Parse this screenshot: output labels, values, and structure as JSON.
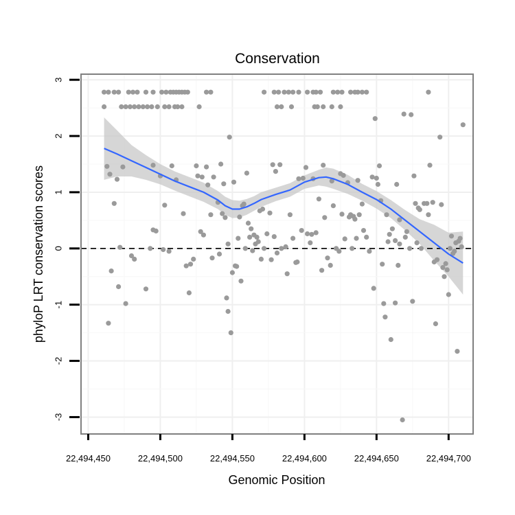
{
  "chart_data": {
    "type": "scatter",
    "title": "Conservation",
    "xlabel": "Genomic Position",
    "ylabel": "phyloP LRT conservation scores",
    "xlim": [
      22494445,
      22494717
    ],
    "ylim": [
      -3.3,
      3.1
    ],
    "x_ticks": [
      22494450,
      22494500,
      22494550,
      22494600,
      22494650,
      22494700
    ],
    "x_tick_labels": [
      "22,494,450",
      "22,494,500",
      "22,494,550",
      "22,494,600",
      "22,494,650",
      "22,494,700"
    ],
    "y_ticks": [
      -3,
      -2,
      -1,
      0,
      1,
      2,
      3
    ],
    "y_tick_labels": [
      "-3",
      "-2",
      "-1",
      "0",
      "1",
      "2",
      "3"
    ],
    "reference_line": {
      "y": 0,
      "style": "dashed",
      "color": "#000000"
    },
    "grid": true,
    "colors": {
      "points": "#9a9a9a",
      "smooth_line": "#3366ff",
      "confidence_band": "#c8c8c8",
      "panel_border": "#7f7f7f"
    },
    "points": [
      [
        22494461,
        2.78
      ],
      [
        22494464,
        2.78
      ],
      [
        22494468,
        2.78
      ],
      [
        22494471,
        2.78
      ],
      [
        22494478,
        2.78
      ],
      [
        22494481,
        2.78
      ],
      [
        22494484,
        2.78
      ],
      [
        22494490,
        2.78
      ],
      [
        22494495,
        2.78
      ],
      [
        22494501,
        2.78
      ],
      [
        22494504,
        2.78
      ],
      [
        22494507,
        2.78
      ],
      [
        22494509,
        2.78
      ],
      [
        22494511,
        2.78
      ],
      [
        22494513,
        2.78
      ],
      [
        22494515,
        2.78
      ],
      [
        22494517,
        2.78
      ],
      [
        22494519,
        2.78
      ],
      [
        22494532,
        2.78
      ],
      [
        22494535,
        2.78
      ],
      [
        22494572,
        2.78
      ],
      [
        22494579,
        2.78
      ],
      [
        22494582,
        2.78
      ],
      [
        22494586,
        2.78
      ],
      [
        22494589,
        2.78
      ],
      [
        22494592,
        2.78
      ],
      [
        22494596,
        2.78
      ],
      [
        22494602,
        2.78
      ],
      [
        22494606,
        2.78
      ],
      [
        22494608,
        2.78
      ],
      [
        22494611,
        2.78
      ],
      [
        22494620,
        2.78
      ],
      [
        22494623,
        2.78
      ],
      [
        22494626,
        2.78
      ],
      [
        22494632,
        2.78
      ],
      [
        22494635,
        2.78
      ],
      [
        22494637,
        2.78
      ],
      [
        22494640,
        2.78
      ],
      [
        22494643,
        2.78
      ],
      [
        22494686,
        2.78
      ],
      [
        22494461,
        2.52
      ],
      [
        22494473,
        2.52
      ],
      [
        22494476,
        2.52
      ],
      [
        22494479,
        2.52
      ],
      [
        22494482,
        2.52
      ],
      [
        22494485,
        2.52
      ],
      [
        22494488,
        2.52
      ],
      [
        22494491,
        2.52
      ],
      [
        22494494,
        2.52
      ],
      [
        22494498,
        2.52
      ],
      [
        22494503,
        2.52
      ],
      [
        22494506,
        2.52
      ],
      [
        22494510,
        2.52
      ],
      [
        22494512,
        2.52
      ],
      [
        22494515,
        2.52
      ],
      [
        22494527,
        2.52
      ],
      [
        22494581,
        2.52
      ],
      [
        22494584,
        2.52
      ],
      [
        22494591,
        2.52
      ],
      [
        22494607,
        2.52
      ],
      [
        22494609,
        2.52
      ],
      [
        22494613,
        2.52
      ],
      [
        22494619,
        2.52
      ],
      [
        22494625,
        2.52
      ],
      [
        22494463,
        1.46
      ],
      [
        22494465,
        1.32
      ],
      [
        22494468,
        0.8
      ],
      [
        22494470,
        1.23
      ],
      [
        22494472,
        0.02
      ],
      [
        22494474,
        1.45
      ],
      [
        22494476,
        -0.98
      ],
      [
        22494464,
        -1.33
      ],
      [
        22494466,
        -0.4
      ],
      [
        22494471,
        -0.68
      ],
      [
        22494480,
        -0.13
      ],
      [
        22494482,
        -0.19
      ],
      [
        22494490,
        -0.72
      ],
      [
        22494493,
        0.0
      ],
      [
        22494495,
        0.33
      ],
      [
        22494497,
        0.31
      ],
      [
        22494495,
        1.48
      ],
      [
        22494500,
        1.29
      ],
      [
        22494503,
        0.77
      ],
      [
        22494502,
        -0.02
      ],
      [
        22494506,
        -0.05
      ],
      [
        22494508,
        1.47
      ],
      [
        22494511,
        1.22
      ],
      [
        22494516,
        0.62
      ],
      [
        22494518,
        -0.31
      ],
      [
        22494520,
        -0.79
      ],
      [
        22494521,
        -0.28
      ],
      [
        22494523,
        -0.19
      ],
      [
        22494525,
        1.47
      ],
      [
        22494526,
        1.29
      ],
      [
        22494528,
        0.3
      ],
      [
        22494529,
        1.27
      ],
      [
        22494530,
        0.24
      ],
      [
        22494532,
        1.45
      ],
      [
        22494533,
        1.13
      ],
      [
        22494535,
        0.6
      ],
      [
        22494536,
        -0.17
      ],
      [
        22494537,
        1.27
      ],
      [
        22494540,
        0.82
      ],
      [
        22494541,
        -0.1
      ],
      [
        22494542,
        1.5
      ],
      [
        22494543,
        0.62
      ],
      [
        22494544,
        1.15
      ],
      [
        22494545,
        0.55
      ],
      [
        22494547,
        0.08
      ],
      [
        22494546,
        -0.88
      ],
      [
        22494547,
        -1.12
      ],
      [
        22494549,
        -1.5
      ],
      [
        22494550,
        -0.43
      ],
      [
        22494548,
        1.98
      ],
      [
        22494551,
        1.18
      ],
      [
        22494552,
        -0.31
      ],
      [
        22494553,
        -0.32
      ],
      [
        22494554,
        0.18
      ],
      [
        22494555,
        0.56
      ],
      [
        22494556,
        -0.58
      ],
      [
        22494557,
        0.76
      ],
      [
        22494558,
        0.79
      ],
      [
        22494559,
        0.0
      ],
      [
        22494560,
        1.34
      ],
      [
        22494561,
        0.45
      ],
      [
        22494562,
        0.2
      ],
      [
        22494563,
        0.35
      ],
      [
        22494564,
        -0.04
      ],
      [
        22494565,
        0.24
      ],
      [
        22494566,
        0.08
      ],
      [
        22494567,
        0.2
      ],
      [
        22494568,
        0.12
      ],
      [
        22494569,
        0.67
      ],
      [
        22494570,
        -0.19
      ],
      [
        22494571,
        0.7
      ],
      [
        22494572,
        0.0
      ],
      [
        22494574,
        0.26
      ],
      [
        22494576,
        0.63
      ],
      [
        22494577,
        -0.2
      ],
      [
        22494578,
        1.49
      ],
      [
        22494579,
        0.21
      ],
      [
        22494580,
        1.37
      ],
      [
        22494581,
        -0.08
      ],
      [
        22494583,
        1.49
      ],
      [
        22494584,
        0.0
      ],
      [
        22494587,
        0.03
      ],
      [
        22494588,
        -0.45
      ],
      [
        22494590,
        0.6
      ],
      [
        22494592,
        0.18
      ],
      [
        22494594,
        -0.25
      ],
      [
        22494595,
        -0.24
      ],
      [
        22494596,
        1.24
      ],
      [
        22494598,
        0.32
      ],
      [
        22494599,
        1.25
      ],
      [
        22494601,
        1.44
      ],
      [
        22494602,
        0.26
      ],
      [
        22494604,
        0.1
      ],
      [
        22494605,
        0.25
      ],
      [
        22494606,
        1.24
      ],
      [
        22494608,
        0.28
      ],
      [
        22494610,
        0.88
      ],
      [
        22494612,
        -0.39
      ],
      [
        22494613,
        1.48
      ],
      [
        22494614,
        0.55
      ],
      [
        22494616,
        -0.17
      ],
      [
        22494618,
        -0.3
      ],
      [
        22494619,
        1.2
      ],
      [
        22494620,
        0.76
      ],
      [
        22494622,
        0.0
      ],
      [
        22494624,
        -0.05
      ],
      [
        22494625,
        1.33
      ],
      [
        22494626,
        0.61
      ],
      [
        22494627,
        1.3
      ],
      [
        22494628,
        0.17
      ],
      [
        22494630,
        1.17
      ],
      [
        22494631,
        0.56
      ],
      [
        22494632,
        0.6
      ],
      [
        22494633,
        0.0
      ],
      [
        22494634,
        0.57
      ],
      [
        22494635,
        0.52
      ],
      [
        22494636,
        0.18
      ],
      [
        22494637,
        1.21
      ],
      [
        22494638,
        0.6
      ],
      [
        22494640,
        0.79
      ],
      [
        22494641,
        0.32
      ],
      [
        22494643,
        0.2
      ],
      [
        22494645,
        -0.05
      ],
      [
        22494647,
        1.27
      ],
      [
        22494648,
        -0.71
      ],
      [
        22494649,
        2.31
      ],
      [
        22494650,
        1.25
      ],
      [
        22494651,
        1.14
      ],
      [
        22494652,
        1.47
      ],
      [
        22494653,
        0.85
      ],
      [
        22494654,
        -0.28
      ],
      [
        22494655,
        -0.98
      ],
      [
        22494656,
        -1.22
      ],
      [
        22494657,
        0.6
      ],
      [
        22494658,
        0.12
      ],
      [
        22494659,
        0.25
      ],
      [
        22494660,
        -1.62
      ],
      [
        22494661,
        0.35
      ],
      [
        22494663,
        -0.97
      ],
      [
        22494663,
        0.14
      ],
      [
        22494664,
        1.14
      ],
      [
        22494665,
        -0.3
      ],
      [
        22494666,
        0.08
      ],
      [
        22494666,
        0.51
      ],
      [
        22494668,
        -3.05
      ],
      [
        22494669,
        2.39
      ],
      [
        22494670,
        0.2
      ],
      [
        22494671,
        0.3
      ],
      [
        22494673,
        0.0
      ],
      [
        22494674,
        2.38
      ],
      [
        22494675,
        -0.94
      ],
      [
        22494676,
        1.29
      ],
      [
        22494677,
        0.8
      ],
      [
        22494678,
        0.1
      ],
      [
        22494679,
        0.72
      ],
      [
        22494680,
        0.69
      ],
      [
        22494681,
        0.0
      ],
      [
        22494683,
        0.8
      ],
      [
        22494685,
        0.8
      ],
      [
        22494686,
        0.6
      ],
      [
        22494687,
        1.48
      ],
      [
        22494689,
        0.82
      ],
      [
        22494690,
        -0.24
      ],
      [
        22494691,
        -1.34
      ],
      [
        22494692,
        -0.2
      ],
      [
        22494694,
        1.98
      ],
      [
        22494695,
        0.78
      ],
      [
        22494696,
        -0.34
      ],
      [
        22494697,
        -0.5
      ],
      [
        22494698,
        -0.27
      ],
      [
        22494699,
        -0.38
      ],
      [
        22494700,
        -0.82
      ],
      [
        22494701,
        0.0
      ],
      [
        22494702,
        0.22
      ],
      [
        22494703,
        -0.09
      ],
      [
        22494704,
        -0.05
      ],
      [
        22494705,
        0.1
      ],
      [
        22494706,
        -1.83
      ],
      [
        22494707,
        0.13
      ],
      [
        22494708,
        0.18
      ],
      [
        22494709,
        0.03
      ],
      [
        22494710,
        2.2
      ]
    ],
    "smooth_fit": {
      "x": [
        22494461,
        22494470,
        22494480,
        22494490,
        22494500,
        22494510,
        22494520,
        22494530,
        22494540,
        22494545,
        22494550,
        22494555,
        22494560,
        22494565,
        22494570,
        22494580,
        22494590,
        22494600,
        22494610,
        22494615,
        22494620,
        22494630,
        22494640,
        22494650,
        22494660,
        22494670,
        22494680,
        22494690,
        22494700,
        22494710
      ],
      "y": [
        1.78,
        1.68,
        1.56,
        1.44,
        1.32,
        1.2,
        1.1,
        1.0,
        0.86,
        0.76,
        0.7,
        0.7,
        0.74,
        0.8,
        0.87,
        0.96,
        1.04,
        1.18,
        1.26,
        1.27,
        1.24,
        1.14,
        1.0,
        0.87,
        0.7,
        0.5,
        0.3,
        0.1,
        -0.1,
        -0.26
      ],
      "lower": [
        1.22,
        1.28,
        1.28,
        1.22,
        1.14,
        1.03,
        0.93,
        0.83,
        0.7,
        0.6,
        0.54,
        0.55,
        0.6,
        0.67,
        0.74,
        0.84,
        0.92,
        1.06,
        1.12,
        1.1,
        1.06,
        0.97,
        0.85,
        0.71,
        0.54,
        0.32,
        0.08,
        -0.22,
        -0.5,
        -0.82
      ],
      "upper": [
        2.33,
        2.1,
        1.84,
        1.66,
        1.5,
        1.37,
        1.27,
        1.17,
        1.02,
        0.92,
        0.86,
        0.85,
        0.88,
        0.93,
        1.0,
        1.08,
        1.16,
        1.3,
        1.4,
        1.44,
        1.42,
        1.31,
        1.15,
        1.02,
        0.86,
        0.68,
        0.52,
        0.42,
        0.28,
        0.3
      ]
    }
  }
}
